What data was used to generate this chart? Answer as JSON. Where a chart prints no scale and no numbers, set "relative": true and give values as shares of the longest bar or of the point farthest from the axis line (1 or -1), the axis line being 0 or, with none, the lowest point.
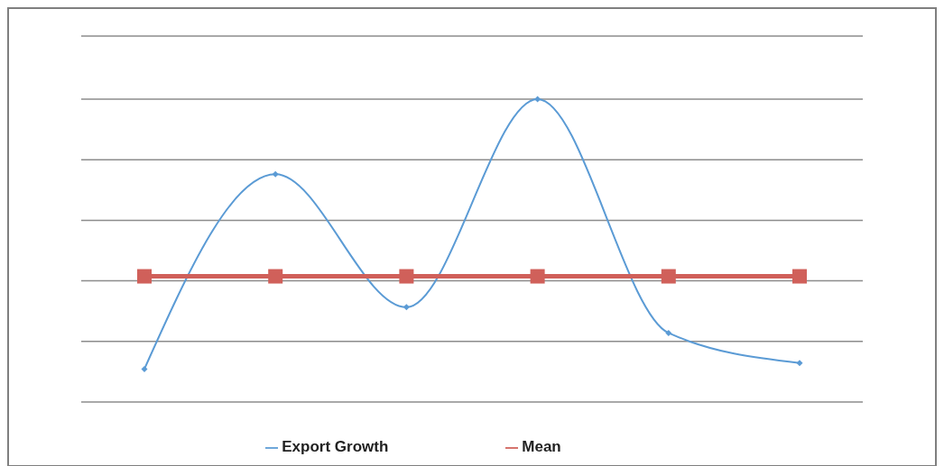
{
  "chart_data": {
    "type": "line",
    "relative": true,
    "categories": [
      null,
      null,
      null,
      null,
      null,
      null
    ],
    "series": [
      {
        "name": "Export Growth",
        "color": "#5b9bd5",
        "values": [
          0.109,
          0.752,
          0.313,
          1,
          0.228,
          0.129
        ],
        "marker": "diamond"
      },
      {
        "name": "Mean",
        "color": "#d0605a",
        "values": [
          0.415,
          0.415,
          0.415,
          0.415,
          0.415,
          0.415
        ],
        "marker": "square"
      }
    ],
    "grid": "y",
    "legend": "bottom"
  }
}
